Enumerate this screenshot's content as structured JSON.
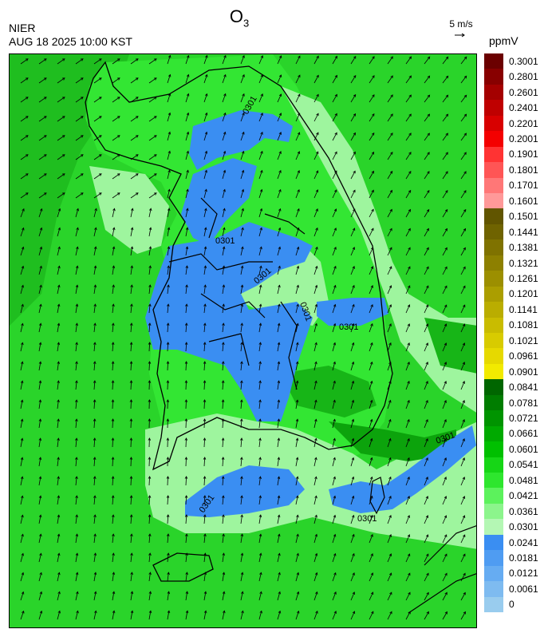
{
  "header": {
    "title_main": "O",
    "title_sub": "3",
    "agency": "NIER",
    "datetime": "AUG 18 2025 10:00 KST",
    "wind_reference": "5 m/s",
    "unit": "ppmV"
  },
  "map": {
    "contour_label": "0301",
    "colors": {
      "sea": "#2ad42a",
      "land_light": "#9ef59e",
      "mid_green": "#33e633",
      "dark_green": "#0ca30c",
      "low_blue": "#3a8ef2",
      "boundary": "#000000"
    }
  },
  "colorbar": {
    "labels": [
      "0.3001",
      "0.2801",
      "0.2601",
      "0.2401",
      "0.2201",
      "0.2001",
      "0.1901",
      "0.1801",
      "0.1701",
      "0.1601",
      "0.1501",
      "0.1441",
      "0.1381",
      "0.1321",
      "0.1261",
      "0.1201",
      "0.1141",
      "0.1081",
      "0.1021",
      "0.0961",
      "0.0901",
      "0.0841",
      "0.0781",
      "0.0721",
      "0.0661",
      "0.0601",
      "0.0541",
      "0.0481",
      "0.0421",
      "0.0361",
      "0.0301",
      "0.0241",
      "0.0181",
      "0.0121",
      "0.0061",
      "0"
    ],
    "colors": [
      "#6b0000",
      "#880000",
      "#a40000",
      "#bf0000",
      "#d80000",
      "#f40000",
      "#ff3333",
      "#ff5555",
      "#ff7777",
      "#ff9999",
      "#615500",
      "#6f6300",
      "#7f7200",
      "#8d8000",
      "#9c8f00",
      "#ab9e00",
      "#baad00",
      "#c9bc00",
      "#d8cb00",
      "#e6d900",
      "#f2ea00",
      "#006600",
      "#007d00",
      "#009400",
      "#00aa00",
      "#00c000",
      "#16d616",
      "#2ee62e",
      "#5cf25c",
      "#8cf58c",
      "#b4f7b4",
      "#3a8ef2",
      "#4f9cf2",
      "#66acf2",
      "#7ebbf0",
      "#99ccee"
    ]
  }
}
